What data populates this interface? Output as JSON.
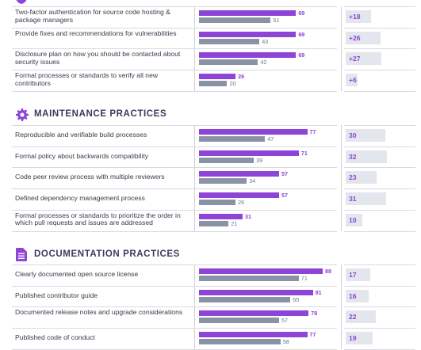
{
  "chart_data": [
    {
      "type": "bar",
      "title": "",
      "rows": [
        {
          "label": "Two-factor authentication for source code hosting & package managers",
          "purple": 69,
          "gray": 51,
          "delta": "+18"
        },
        {
          "label": "Provide fixes and recommendations for vulnerabilities",
          "purple": 69,
          "gray": 43,
          "delta": "+26"
        },
        {
          "label": "Disclosure plan on how you should be contacted about security issues",
          "purple": 69,
          "gray": 42,
          "delta": "+27"
        },
        {
          "label": "Formal processes or standards to verify all new contributors",
          "purple": 26,
          "gray": 20,
          "delta": "+6"
        }
      ]
    },
    {
      "type": "bar",
      "title": "MAINTENANCE PRACTICES",
      "icon": "gear-icon",
      "rows": [
        {
          "label": "Reproducible and verifiable build processes",
          "purple": 77,
          "gray": 47,
          "delta": "30"
        },
        {
          "label": "Formal policy about backwards compatibility",
          "purple": 71,
          "gray": 39,
          "delta": "32"
        },
        {
          "label": "Code peer review process with multiple reviewers",
          "purple": 57,
          "gray": 34,
          "delta": "23"
        },
        {
          "label": "Defined dependency management process",
          "purple": 57,
          "gray": 26,
          "delta": "31"
        },
        {
          "label": "Formal processes  or standards to prioritize the order in which pull requests and issues are addressed",
          "purple": 31,
          "gray": 21,
          "delta": "10"
        }
      ]
    },
    {
      "type": "bar",
      "title": "DOCUMENTATION PRACTICES",
      "icon": "document-icon",
      "rows": [
        {
          "label": "Clearly documented open source license",
          "purple": 88,
          "gray": 71,
          "delta": "17"
        },
        {
          "label": "Published contributor guide",
          "purple": 81,
          "gray": 65,
          "delta": "16"
        },
        {
          "label": "Documented release notes and upgrade considerations",
          "purple": 78,
          "gray": 57,
          "delta": "22"
        },
        {
          "label": "Published code of conduct",
          "purple": 77,
          "gray": 58,
          "delta": "19"
        }
      ]
    }
  ],
  "colors": {
    "accent": "#8e44d6",
    "secondary": "#8a93a6",
    "delta_bg": "#e3e6ec"
  }
}
